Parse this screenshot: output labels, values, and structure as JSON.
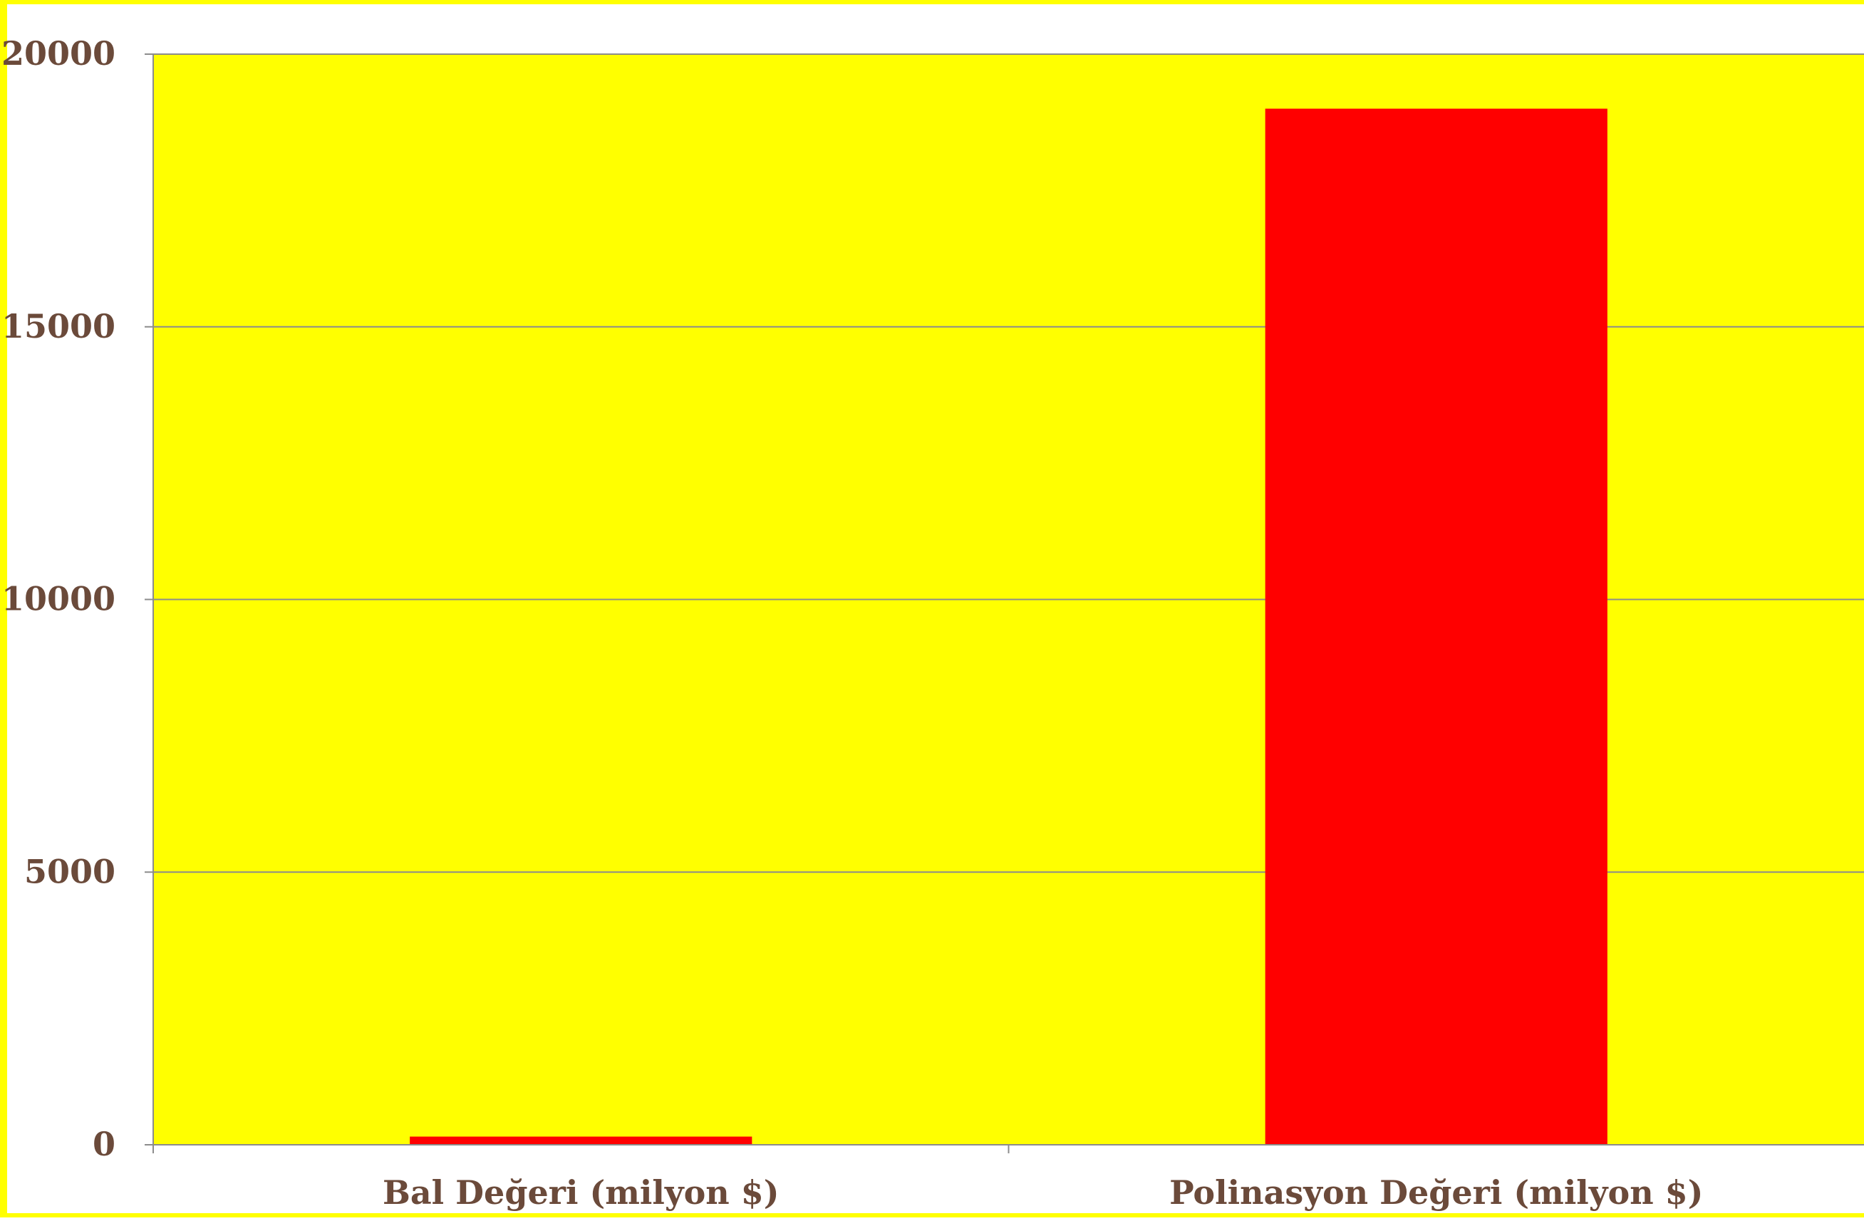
{
  "chart_data": {
    "type": "bar",
    "title": "",
    "xlabel": "",
    "ylabel": "",
    "categories": [
      "Bal Değeri (milyon $)",
      "Polinasyon Değeri (milyon $)"
    ],
    "values": [
      150,
      19000
    ],
    "ylim": [
      0,
      20000
    ],
    "yticks": [
      0,
      5000,
      10000,
      15000,
      20000
    ],
    "grid": true,
    "legend": "none"
  },
  "colors": {
    "page_border": "#ffff00",
    "plot_background": "#ffff00",
    "bar": "#ff0000",
    "gridline": "#8c8c8c",
    "axis": "#8c8c8c",
    "label_text": "#6b4a3a"
  }
}
